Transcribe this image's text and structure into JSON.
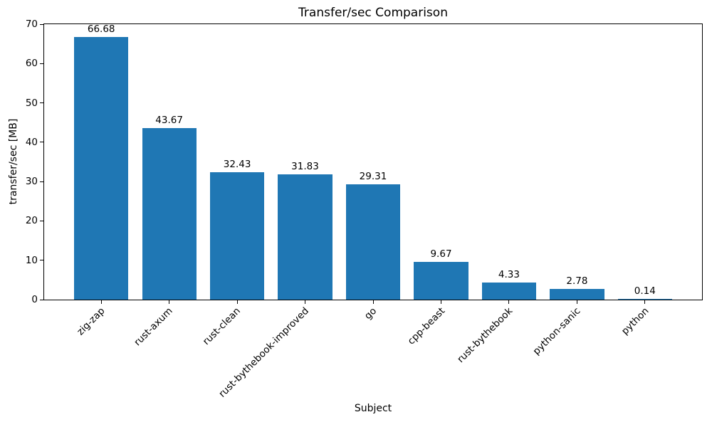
{
  "chart_data": {
    "type": "bar",
    "title": "Transfer/sec Comparison",
    "xlabel": "Subject",
    "ylabel": "transfer/sec [MB]",
    "categories": [
      "zig-zap",
      "rust-axum",
      "rust-clean",
      "rust-bythebook-improved",
      "go",
      "cpp-beast",
      "rust-bythebook",
      "python-sanic",
      "python"
    ],
    "values": [
      66.68,
      43.67,
      32.43,
      31.83,
      29.31,
      9.67,
      4.33,
      2.78,
      0.14
    ],
    "value_labels": [
      "66.68",
      "43.67",
      "32.43",
      "31.83",
      "29.31",
      "9.67",
      "4.33",
      "2.78",
      "0.14"
    ],
    "ylim": [
      0,
      70
    ],
    "yticks": [
      0,
      10,
      20,
      30,
      40,
      50,
      60,
      70
    ],
    "bar_color": "#1f77b4",
    "grid": false,
    "legend_position": "none",
    "x_tick_rotation_degrees": 45
  }
}
